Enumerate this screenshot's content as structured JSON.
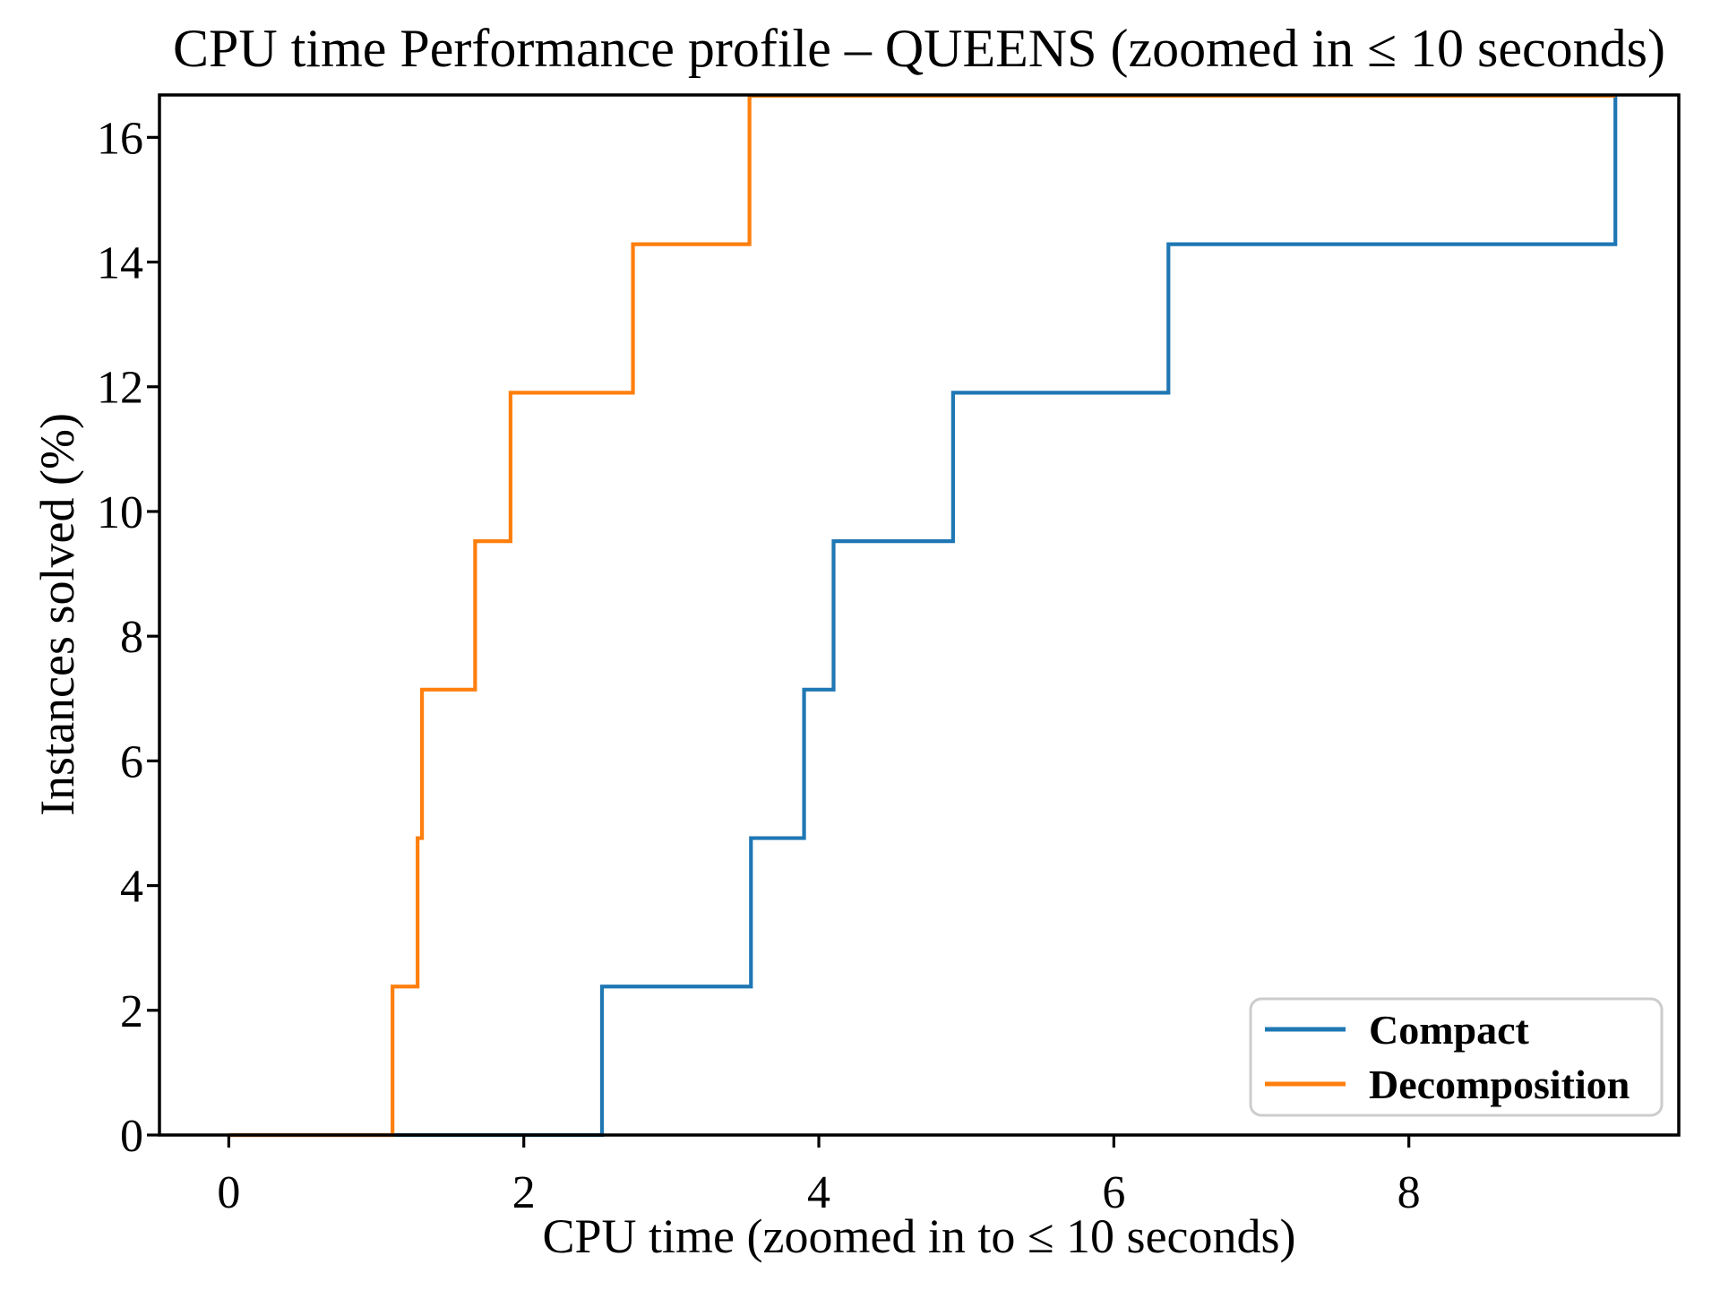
{
  "figure": {
    "title": "CPU time Performance profile – QUEENS (zoomed in ≤ 10 seconds)"
  },
  "chart_data": {
    "type": "line",
    "step": "post",
    "title": "CPU time Performance profile – QUEENS (zoomed in ≤ 10 seconds)",
    "xlabel": "CPU time (zoomed in to ≤ 10 seconds)",
    "ylabel": "Instances solved (%)",
    "xlim": [
      -0.47,
      9.83
    ],
    "ylim": [
      0,
      16.68
    ],
    "xticks": [
      "0",
      "2",
      "4",
      "6",
      "8"
    ],
    "xtick_values": [
      0,
      2,
      4,
      6,
      8
    ],
    "yticks": [
      "0",
      "2",
      "4",
      "6",
      "8",
      "10",
      "12",
      "14",
      "16"
    ],
    "ytick_values": [
      0,
      2,
      4,
      6,
      8,
      10,
      12,
      14,
      16
    ],
    "grid": false,
    "legend": {
      "position": "lower right",
      "entries": [
        "Compact",
        "Decomposition"
      ]
    },
    "series": [
      {
        "name": "Compact",
        "color": "#1f77b4",
        "x": [
          0,
          2.53,
          3.54,
          3.9,
          4.1,
          4.91,
          6.37,
          9.4
        ],
        "y": [
          0,
          2.381,
          4.762,
          7.143,
          9.524,
          11.905,
          14.286,
          16.667
        ]
      },
      {
        "name": "Decomposition",
        "color": "#ff7f0e",
        "x": [
          0,
          1.11,
          1.28,
          1.31,
          1.67,
          1.91,
          2.74,
          3.53
        ],
        "y": [
          0,
          2.381,
          4.762,
          7.143,
          9.524,
          11.905,
          14.286,
          16.667
        ],
        "extend_x": 9.4
      }
    ]
  },
  "colors": {
    "background": "#ffffff",
    "axis": "#000000",
    "legend_border": "#cccccc",
    "compact": "#1f77b4",
    "decomposition": "#ff7f0e"
  }
}
